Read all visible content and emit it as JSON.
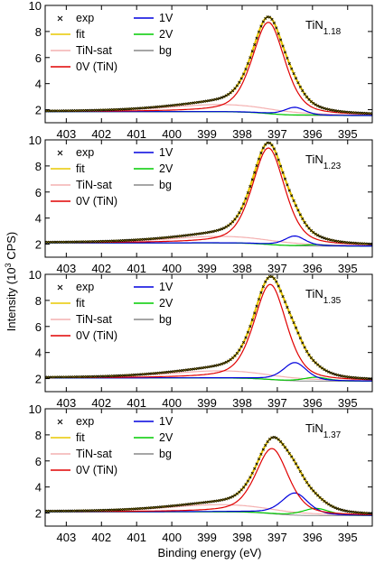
{
  "figure": {
    "ylabel_main": "Intensity (10",
    "ylabel_sup": "3",
    "ylabel_end": " CPS)",
    "xlabel": "Binding energy (eV)"
  },
  "chart_data": [
    {
      "type": "line",
      "sample_main": "TiN",
      "sample_sub": "1.18",
      "xlim": [
        403.6,
        394.3
      ],
      "ylim": [
        1,
        10
      ],
      "yticks": [
        2,
        4,
        6,
        8,
        10
      ],
      "xticks": [
        403,
        402,
        401,
        400,
        399,
        398,
        397,
        396,
        395
      ],
      "legend": [
        {
          "label": "exp",
          "color": "#000000",
          "marker": "x"
        },
        {
          "label": "fit",
          "color": "#e8c800"
        },
        {
          "label": "TiN-sat",
          "color": "#f4b0b0"
        },
        {
          "label": "0V (TiN)",
          "color": "#e00000"
        },
        {
          "label": "1V",
          "color": "#0000dd"
        },
        {
          "label": "2V",
          "color": "#00cc00"
        },
        {
          "label": "bg",
          "color": "#888888"
        }
      ],
      "components": {
        "tin": {
          "center": 397.25,
          "height": 7.0,
          "width": 0.55
        },
        "sat": {
          "center": 398.6,
          "height": 0.55,
          "width": 1.8
        },
        "v1": {
          "center": 396.5,
          "height": 0.6,
          "width": 0.35
        },
        "v2": {
          "center": 395.9,
          "height": 0.05,
          "width": 0.4
        },
        "bg": {
          "base_low": 1.55,
          "base_high": 1.85
        }
      }
    },
    {
      "type": "line",
      "sample_main": "TiN",
      "sample_sub": "1.23",
      "xlim": [
        403.6,
        394.3
      ],
      "ylim": [
        1,
        10
      ],
      "yticks": [
        2,
        4,
        6,
        8,
        10
      ],
      "xticks": [
        403,
        402,
        401,
        400,
        399,
        398,
        397,
        396,
        395
      ],
      "legend": [
        {
          "label": "exp",
          "color": "#000000",
          "marker": "x"
        },
        {
          "label": "fit",
          "color": "#e8c800"
        },
        {
          "label": "TiN-sat",
          "color": "#f4b0b0"
        },
        {
          "label": "0V (TiN)",
          "color": "#e00000"
        },
        {
          "label": "1V",
          "color": "#0000dd"
        },
        {
          "label": "2V",
          "color": "#00cc00"
        },
        {
          "label": "bg",
          "color": "#888888"
        }
      ],
      "components": {
        "tin": {
          "center": 397.25,
          "height": 7.4,
          "width": 0.55
        },
        "sat": {
          "center": 398.6,
          "height": 0.5,
          "width": 1.8
        },
        "v1": {
          "center": 396.5,
          "height": 0.75,
          "width": 0.35
        },
        "v2": {
          "center": 395.9,
          "height": 0.1,
          "width": 0.4
        },
        "bg": {
          "base_low": 1.85,
          "base_high": 2.1
        }
      }
    },
    {
      "type": "line",
      "sample_main": "TiN",
      "sample_sub": "1.35",
      "xlim": [
        403.6,
        394.3
      ],
      "ylim": [
        1,
        10
      ],
      "yticks": [
        2,
        4,
        6,
        8,
        10
      ],
      "xticks": [
        403,
        402,
        401,
        400,
        399,
        398,
        397,
        396,
        395
      ],
      "legend": [
        {
          "label": "exp",
          "color": "#000000",
          "marker": "x"
        },
        {
          "label": "fit",
          "color": "#e8c800"
        },
        {
          "label": "TiN-sat",
          "color": "#f4b0b0"
        },
        {
          "label": "0V (TiN)",
          "color": "#e00000"
        },
        {
          "label": "1V",
          "color": "#0000dd"
        },
        {
          "label": "2V",
          "color": "#00cc00"
        },
        {
          "label": "bg",
          "color": "#888888"
        }
      ],
      "components": {
        "tin": {
          "center": 397.2,
          "height": 7.3,
          "width": 0.55
        },
        "sat": {
          "center": 398.6,
          "height": 0.55,
          "width": 1.8
        },
        "v1": {
          "center": 396.5,
          "height": 1.4,
          "width": 0.4
        },
        "v2": {
          "center": 395.9,
          "height": 0.3,
          "width": 0.4
        },
        "bg": {
          "base_low": 1.8,
          "base_high": 2.05
        }
      }
    },
    {
      "type": "line",
      "sample_main": "TiN",
      "sample_sub": "1.37",
      "xlim": [
        403.6,
        394.3
      ],
      "ylim": [
        1,
        10
      ],
      "yticks": [
        2,
        4,
        6,
        8,
        10
      ],
      "xticks": [
        403,
        402,
        401,
        400,
        399,
        398,
        397,
        396,
        395
      ],
      "legend": [
        {
          "label": "exp",
          "color": "#000000",
          "marker": "x"
        },
        {
          "label": "fit",
          "color": "#e8c800"
        },
        {
          "label": "TiN-sat",
          "color": "#f4b0b0"
        },
        {
          "label": "0V (TiN)",
          "color": "#e00000"
        },
        {
          "label": "1V",
          "color": "#0000dd"
        },
        {
          "label": "2V",
          "color": "#00cc00"
        },
        {
          "label": "bg",
          "color": "#888888"
        }
      ],
      "components": {
        "tin": {
          "center": 397.15,
          "height": 5.0,
          "width": 0.55
        },
        "sat": {
          "center": 398.6,
          "height": 0.55,
          "width": 1.8
        },
        "v1": {
          "center": 396.5,
          "height": 1.7,
          "width": 0.45
        },
        "v2": {
          "center": 395.9,
          "height": 0.55,
          "width": 0.45
        },
        "bg": {
          "base_low": 1.8,
          "base_high": 2.1
        }
      }
    }
  ]
}
